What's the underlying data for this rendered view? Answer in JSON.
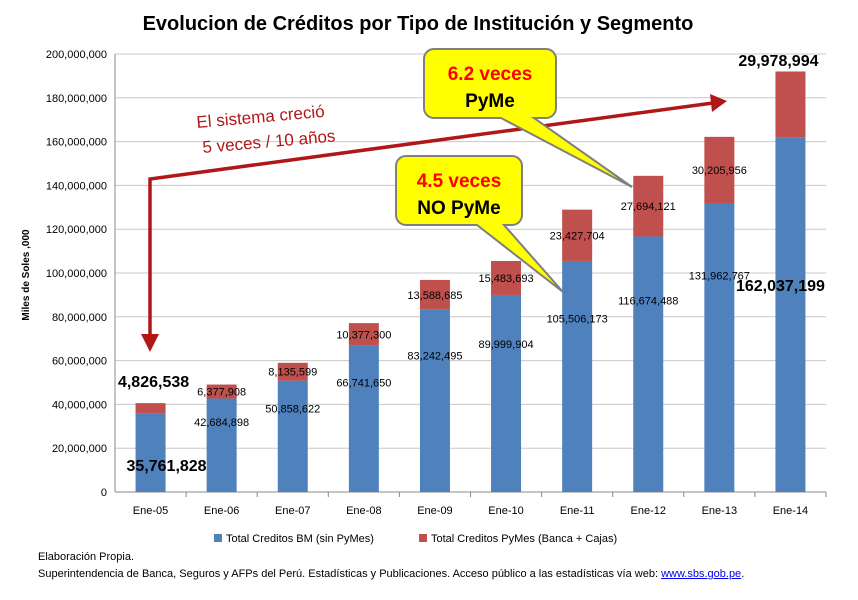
{
  "chart_data": {
    "type": "bar",
    "stacked": true,
    "title": "Evolucion de Créditos por Tipo de Institución y Segmento",
    "ylabel": "Miles de Soles ,000",
    "xlabel": "",
    "ylim": [
      0,
      200000000
    ],
    "yticks": [
      "0",
      "20,000,000",
      "40,000,000",
      "60,000,000",
      "80,000,000",
      "100,000,000",
      "120,000,000",
      "140,000,000",
      "160,000,000",
      "180,000,000",
      "200,000,000"
    ],
    "ytick_values": [
      0,
      20000000,
      40000000,
      60000000,
      80000000,
      100000000,
      120000000,
      140000000,
      160000000,
      180000000,
      200000000
    ],
    "categories": [
      "Ene-05",
      "Ene-06",
      "Ene-07",
      "Ene-08",
      "Ene-09",
      "Ene-10",
      "Ene-11",
      "Ene-12",
      "Ene-13",
      "Ene-14"
    ],
    "grid": true,
    "legend_position": "bottom",
    "series": [
      {
        "name": "Total Creditos BM (sin PyMes)",
        "color": "#4f81bd",
        "values": [
          35761828,
          42684898,
          50858622,
          66741650,
          83242495,
          89999904,
          105506173,
          116674488,
          131962767,
          162037199
        ],
        "labels": [
          "35,761,828",
          "42,684,898",
          "50,858,622",
          "66,741,650",
          "83,242,495",
          "89,999,904",
          "105,506,173",
          "116,674,488",
          "131,962,767",
          "162,037,199"
        ]
      },
      {
        "name": "Total Creditos PyMes (Banca + Cajas)",
        "color": "#c0504d",
        "values": [
          4826538,
          6377908,
          8135599,
          10377300,
          13588685,
          15483693,
          23427704,
          27694121,
          30205956,
          29978994
        ],
        "labels": [
          "4,826,538",
          "6,377,908",
          "8,135,599",
          "10,377,300",
          "13,588,685",
          "15,483,693",
          "23,427,704",
          "27,694,121",
          "30,205,956",
          "29,978,994"
        ]
      }
    ],
    "annotations": {
      "growth_line1": "El sistema creció",
      "growth_line2": "5 veces / 10 años",
      "pyme_line1": "6.2 veces",
      "pyme_line2": "PyMe",
      "nopyme_line1": "4.5 veces",
      "nopyme_line2": "NO PyMe",
      "arrow_color": "#b01818",
      "callout_fill": "#ffff00",
      "callout_number_color": "#ff0000"
    }
  },
  "footer": {
    "line1": "Elaboración Propia.",
    "line2": "Superintendencia de Banca, Seguros y AFPs del Perú.  Estadísticas y Publicaciones. Acceso público a las estadísticas vía web: ",
    "link": "www.sbs.gob.pe",
    "line2_end": "."
  }
}
